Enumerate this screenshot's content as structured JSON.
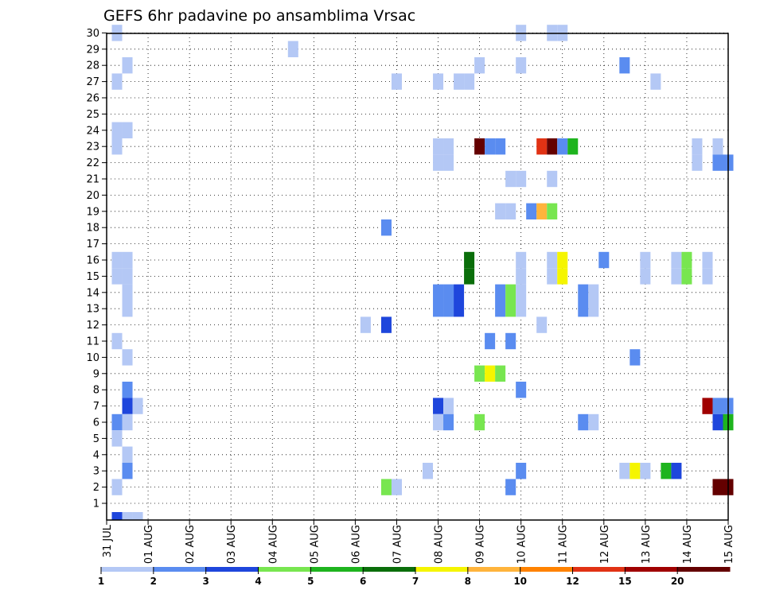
{
  "chart_data": {
    "type": "heatmap",
    "title": "GEFS 6hr padavine po ansamblima Vrsac",
    "y_ticks": [
      "1",
      "2",
      "3",
      "4",
      "5",
      "6",
      "7",
      "8",
      "9",
      "10",
      "11",
      "12",
      "13",
      "14",
      "15",
      "16",
      "17",
      "18",
      "19",
      "20",
      "21",
      "22",
      "23",
      "24",
      "25",
      "26",
      "27",
      "28",
      "29",
      "30"
    ],
    "x_ticks": [
      "31 JUL",
      "01 AUG",
      "02 AUG",
      "03 AUG",
      "04 AUG",
      "05 AUG",
      "06 AUG",
      "07 AUG",
      "08 AUG",
      "09 AUG",
      "10 AUG",
      "11 AUG",
      "12 AUG",
      "13 AUG",
      "14 AUG",
      "15 AUG"
    ],
    "grid": "dotted",
    "colorbar": {
      "tick_labels": [
        "1",
        "2",
        "3",
        "4",
        "5",
        "6",
        "7",
        "8",
        "10",
        "12",
        "15",
        "20"
      ],
      "colors": [
        "#b4c8f5",
        "#5a8cf0",
        "#1e46dc",
        "#78e650",
        "#1eb41e",
        "#0a6e0a",
        "#f5f500",
        "#ffb43c",
        "#ff8200",
        "#e13214",
        "#a00000",
        "#640000"
      ]
    },
    "cell_index_unit": "6-hour steps after 00 UTC 31 JUL",
    "cells": [
      {
        "m": 30,
        "t": 1,
        "c": 0
      },
      {
        "m": 30,
        "t": 40,
        "c": 0
      },
      {
        "m": 30,
        "t": 43,
        "c": 0
      },
      {
        "m": 30,
        "t": 44,
        "c": 0
      },
      {
        "m": 29,
        "t": 18,
        "c": 0
      },
      {
        "m": 28,
        "t": 2,
        "c": 0
      },
      {
        "m": 28,
        "t": 36,
        "c": 0
      },
      {
        "m": 28,
        "t": 40,
        "c": 0
      },
      {
        "m": 28,
        "t": 50,
        "c": 1
      },
      {
        "m": 27,
        "t": 1,
        "c": 0
      },
      {
        "m": 27,
        "t": 28,
        "c": 0
      },
      {
        "m": 27,
        "t": 32,
        "c": 0
      },
      {
        "m": 27,
        "t": 34,
        "c": 0
      },
      {
        "m": 27,
        "t": 35,
        "c": 0
      },
      {
        "m": 27,
        "t": 53,
        "c": 0
      },
      {
        "m": 24,
        "t": 1,
        "c": 0
      },
      {
        "m": 24,
        "t": 2,
        "c": 0
      },
      {
        "m": 23,
        "t": 1,
        "c": 0
      },
      {
        "m": 23,
        "t": 32,
        "c": 0
      },
      {
        "m": 23,
        "t": 33,
        "c": 0
      },
      {
        "m": 23,
        "t": 36,
        "c": 11
      },
      {
        "m": 23,
        "t": 37,
        "c": 1
      },
      {
        "m": 23,
        "t": 38,
        "c": 1
      },
      {
        "m": 23,
        "t": 42,
        "c": 9
      },
      {
        "m": 23,
        "t": 43,
        "c": 11
      },
      {
        "m": 23,
        "t": 44,
        "c": 1
      },
      {
        "m": 23,
        "t": 45,
        "c": 4
      },
      {
        "m": 23,
        "t": 57,
        "c": 0
      },
      {
        "m": 23,
        "t": 59,
        "c": 0
      },
      {
        "m": 22,
        "t": 32,
        "c": 0
      },
      {
        "m": 22,
        "t": 33,
        "c": 0
      },
      {
        "m": 22,
        "t": 57,
        "c": 0
      },
      {
        "m": 22,
        "t": 59,
        "c": 1
      },
      {
        "m": 22,
        "t": 60,
        "c": 1
      },
      {
        "m": 21,
        "t": 39,
        "c": 0
      },
      {
        "m": 21,
        "t": 40,
        "c": 0
      },
      {
        "m": 21,
        "t": 43,
        "c": 0
      },
      {
        "m": 19,
        "t": 38,
        "c": 0
      },
      {
        "m": 19,
        "t": 39,
        "c": 0
      },
      {
        "m": 19,
        "t": 41,
        "c": 1
      },
      {
        "m": 19,
        "t": 42,
        "c": 7
      },
      {
        "m": 19,
        "t": 43,
        "c": 3
      },
      {
        "m": 18,
        "t": 27,
        "c": 1
      },
      {
        "m": 16,
        "t": 1,
        "c": 0
      },
      {
        "m": 16,
        "t": 2,
        "c": 0
      },
      {
        "m": 16,
        "t": 35,
        "c": 5
      },
      {
        "m": 16,
        "t": 40,
        "c": 0
      },
      {
        "m": 16,
        "t": 43,
        "c": 0
      },
      {
        "m": 16,
        "t": 44,
        "c": 6
      },
      {
        "m": 16,
        "t": 48,
        "c": 1
      },
      {
        "m": 16,
        "t": 52,
        "c": 0
      },
      {
        "m": 16,
        "t": 55,
        "c": 0
      },
      {
        "m": 16,
        "t": 56,
        "c": 3
      },
      {
        "m": 16,
        "t": 58,
        "c": 0
      },
      {
        "m": 15,
        "t": 1,
        "c": 0
      },
      {
        "m": 15,
        "t": 2,
        "c": 0
      },
      {
        "m": 15,
        "t": 35,
        "c": 5
      },
      {
        "m": 15,
        "t": 40,
        "c": 0
      },
      {
        "m": 15,
        "t": 43,
        "c": 0
      },
      {
        "m": 15,
        "t": 44,
        "c": 6
      },
      {
        "m": 15,
        "t": 52,
        "c": 0
      },
      {
        "m": 15,
        "t": 55,
        "c": 0
      },
      {
        "m": 15,
        "t": 56,
        "c": 3
      },
      {
        "m": 15,
        "t": 58,
        "c": 0
      },
      {
        "m": 14,
        "t": 2,
        "c": 0
      },
      {
        "m": 14,
        "t": 32,
        "c": 1
      },
      {
        "m": 14,
        "t": 33,
        "c": 1
      },
      {
        "m": 14,
        "t": 34,
        "c": 2
      },
      {
        "m": 14,
        "t": 38,
        "c": 1
      },
      {
        "m": 14,
        "t": 39,
        "c": 3
      },
      {
        "m": 14,
        "t": 40,
        "c": 0
      },
      {
        "m": 14,
        "t": 46,
        "c": 1
      },
      {
        "m": 14,
        "t": 47,
        "c": 0
      },
      {
        "m": 13,
        "t": 2,
        "c": 0
      },
      {
        "m": 13,
        "t": 32,
        "c": 1
      },
      {
        "m": 13,
        "t": 33,
        "c": 1
      },
      {
        "m": 13,
        "t": 34,
        "c": 2
      },
      {
        "m": 13,
        "t": 38,
        "c": 1
      },
      {
        "m": 13,
        "t": 39,
        "c": 3
      },
      {
        "m": 13,
        "t": 40,
        "c": 0
      },
      {
        "m": 13,
        "t": 46,
        "c": 1
      },
      {
        "m": 13,
        "t": 47,
        "c": 0
      },
      {
        "m": 12,
        "t": 25,
        "c": 0
      },
      {
        "m": 12,
        "t": 27,
        "c": 2
      },
      {
        "m": 12,
        "t": 42,
        "c": 0
      },
      {
        "m": 11,
        "t": 1,
        "c": 0
      },
      {
        "m": 11,
        "t": 37,
        "c": 1
      },
      {
        "m": 11,
        "t": 39,
        "c": 1
      },
      {
        "m": 10,
        "t": 2,
        "c": 0
      },
      {
        "m": 10,
        "t": 51,
        "c": 1
      },
      {
        "m": 9,
        "t": 36,
        "c": 3
      },
      {
        "m": 9,
        "t": 37,
        "c": 6
      },
      {
        "m": 9,
        "t": 38,
        "c": 3
      },
      {
        "m": 8,
        "t": 2,
        "c": 1
      },
      {
        "m": 8,
        "t": 40,
        "c": 1
      },
      {
        "m": 7,
        "t": 2,
        "c": 2
      },
      {
        "m": 7,
        "t": 3,
        "c": 0
      },
      {
        "m": 7,
        "t": 32,
        "c": 2
      },
      {
        "m": 7,
        "t": 33,
        "c": 0
      },
      {
        "m": 7,
        "t": 58,
        "c": 10
      },
      {
        "m": 7,
        "t": 59,
        "c": 1
      },
      {
        "m": 7,
        "t": 60,
        "c": 1
      },
      {
        "m": 6,
        "t": 1,
        "c": 1
      },
      {
        "m": 6,
        "t": 2,
        "c": 0
      },
      {
        "m": 6,
        "t": 32,
        "c": 0
      },
      {
        "m": 6,
        "t": 33,
        "c": 1
      },
      {
        "m": 6,
        "t": 36,
        "c": 3
      },
      {
        "m": 6,
        "t": 46,
        "c": 1
      },
      {
        "m": 6,
        "t": 47,
        "c": 0
      },
      {
        "m": 6,
        "t": 59,
        "c": 2
      },
      {
        "m": 6,
        "t": 60,
        "c": 4
      },
      {
        "m": 5,
        "t": 1,
        "c": 0
      },
      {
        "m": 4,
        "t": 2,
        "c": 0
      },
      {
        "m": 3,
        "t": 2,
        "c": 1
      },
      {
        "m": 3,
        "t": 31,
        "c": 0
      },
      {
        "m": 3,
        "t": 40,
        "c": 1
      },
      {
        "m": 3,
        "t": 50,
        "c": 0
      },
      {
        "m": 3,
        "t": 51,
        "c": 6
      },
      {
        "m": 3,
        "t": 52,
        "c": 0
      },
      {
        "m": 3,
        "t": 54,
        "c": 4
      },
      {
        "m": 3,
        "t": 55,
        "c": 2
      },
      {
        "m": 2,
        "t": 1,
        "c": 0
      },
      {
        "m": 2,
        "t": 27,
        "c": 3
      },
      {
        "m": 2,
        "t": 28,
        "c": 0
      },
      {
        "m": 2,
        "t": 39,
        "c": 1
      },
      {
        "m": 2,
        "t": 59,
        "c": 11
      },
      {
        "m": 2,
        "t": 60,
        "c": 11
      },
      {
        "m": 0,
        "t": 1,
        "c": 2
      },
      {
        "m": 0,
        "t": 2,
        "c": 0
      },
      {
        "m": 0,
        "t": 3,
        "c": 0
      }
    ]
  }
}
